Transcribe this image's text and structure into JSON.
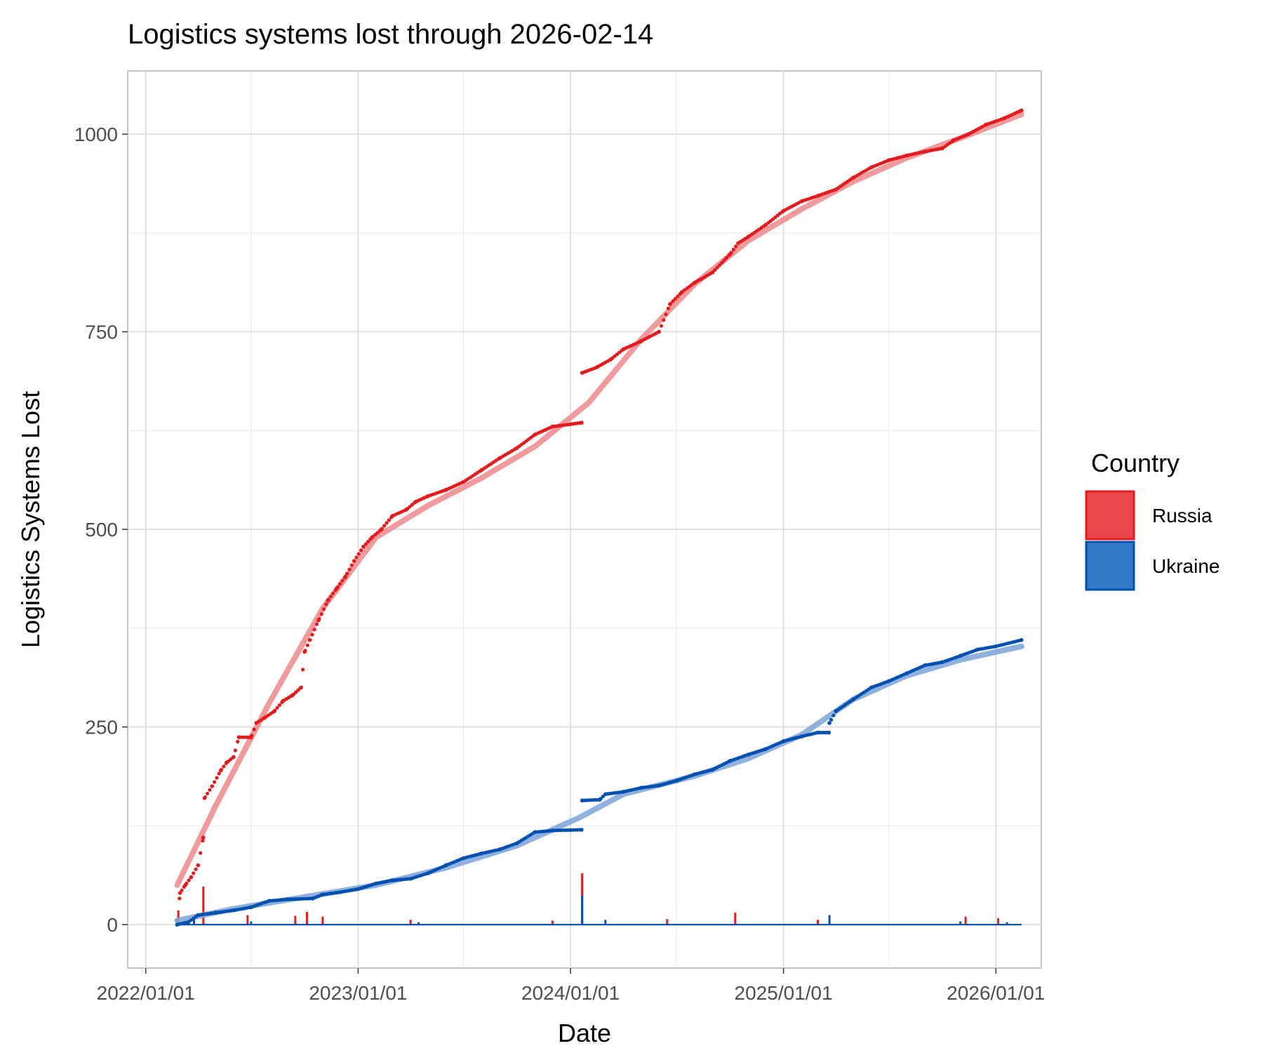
{
  "chart_data": {
    "type": "line",
    "title": "Logistics systems lost through 2026-02-14",
    "xlabel": "Date",
    "ylabel": "Logistics Systems Lost",
    "x_range": [
      "2021-12-01",
      "2026-03-20"
    ],
    "ylim": [
      -55,
      1080
    ],
    "y_ticks": [
      0,
      250,
      500,
      750,
      1000
    ],
    "y_minor": [
      125,
      375,
      625,
      875
    ],
    "x_ticks": [
      {
        "date": "2022-01-01",
        "label": "2022/01/01"
      },
      {
        "date": "2023-01-01",
        "label": "2023/01/01"
      },
      {
        "date": "2024-01-01",
        "label": "2024/01/01"
      },
      {
        "date": "2025-01-01",
        "label": "2025/01/01"
      },
      {
        "date": "2026-01-01",
        "label": "2026/01/01"
      }
    ],
    "x_minor": [
      "2022-07-01",
      "2023-07-01",
      "2024-07-01",
      "2025-07-01"
    ],
    "legend": {
      "title": "Country",
      "position": "right"
    },
    "series": [
      {
        "name": "Russia",
        "color": "#e41a1c",
        "fill": "#e8474b",
        "smooth_color": "#f08f93",
        "cumulative": [
          [
            "2022-02-24",
            5
          ],
          [
            "2022-03-01",
            40
          ],
          [
            "2022-03-10",
            50
          ],
          [
            "2022-03-20",
            60
          ],
          [
            "2022-04-01",
            75
          ],
          [
            "2022-04-10",
            110
          ],
          [
            "2022-04-12",
            160
          ],
          [
            "2022-04-25",
            175
          ],
          [
            "2022-05-10",
            195
          ],
          [
            "2022-05-20",
            205
          ],
          [
            "2022-06-01",
            212
          ],
          [
            "2022-06-10",
            237
          ],
          [
            "2022-07-01",
            237
          ],
          [
            "2022-07-10",
            255
          ],
          [
            "2022-07-25",
            262
          ],
          [
            "2022-08-10",
            270
          ],
          [
            "2022-08-25",
            283
          ],
          [
            "2022-09-10",
            290
          ],
          [
            "2022-09-25",
            300
          ],
          [
            "2022-10-01",
            345
          ],
          [
            "2022-10-10",
            360
          ],
          [
            "2022-10-25",
            385
          ],
          [
            "2022-11-10",
            410
          ],
          [
            "2022-11-25",
            425
          ],
          [
            "2022-12-10",
            440
          ],
          [
            "2022-12-25",
            460
          ],
          [
            "2023-01-10",
            478
          ],
          [
            "2023-01-25",
            490
          ],
          [
            "2023-02-10",
            500
          ],
          [
            "2023-03-01",
            517
          ],
          [
            "2023-03-25",
            525
          ],
          [
            "2023-04-10",
            535
          ],
          [
            "2023-05-01",
            542
          ],
          [
            "2023-06-01",
            550
          ],
          [
            "2023-07-01",
            560
          ],
          [
            "2023-08-01",
            575
          ],
          [
            "2023-09-01",
            590
          ],
          [
            "2023-10-01",
            603
          ],
          [
            "2023-11-01",
            620
          ],
          [
            "2023-12-01",
            630
          ],
          [
            "2024-01-01",
            633
          ],
          [
            "2024-01-20",
            635
          ],
          [
            "2024-01-21",
            698
          ],
          [
            "2024-02-15",
            705
          ],
          [
            "2024-03-10",
            715
          ],
          [
            "2024-04-01",
            728
          ],
          [
            "2024-05-01",
            738
          ],
          [
            "2024-06-01",
            750
          ],
          [
            "2024-06-20",
            785
          ],
          [
            "2024-07-10",
            800
          ],
          [
            "2024-08-01",
            812
          ],
          [
            "2024-09-01",
            825
          ],
          [
            "2024-10-01",
            848
          ],
          [
            "2024-10-15",
            862
          ],
          [
            "2024-11-01",
            870
          ],
          [
            "2024-12-01",
            885
          ],
          [
            "2025-01-01",
            903
          ],
          [
            "2025-02-01",
            915
          ],
          [
            "2025-03-01",
            922
          ],
          [
            "2025-04-01",
            930
          ],
          [
            "2025-05-01",
            945
          ],
          [
            "2025-06-01",
            958
          ],
          [
            "2025-07-01",
            967
          ],
          [
            "2025-08-01",
            973
          ],
          [
            "2025-09-01",
            978
          ],
          [
            "2025-10-01",
            982
          ],
          [
            "2025-10-20",
            992
          ],
          [
            "2025-11-15",
            1000
          ],
          [
            "2025-12-15",
            1012
          ],
          [
            "2026-01-15",
            1020
          ],
          [
            "2026-02-14",
            1030
          ]
        ],
        "smooth": [
          [
            "2022-02-24",
            50
          ],
          [
            "2022-05-01",
            150
          ],
          [
            "2022-08-01",
            280
          ],
          [
            "2022-11-01",
            400
          ],
          [
            "2023-02-01",
            490
          ],
          [
            "2023-05-01",
            530
          ],
          [
            "2023-08-01",
            565
          ],
          [
            "2023-11-01",
            605
          ],
          [
            "2024-02-01",
            660
          ],
          [
            "2024-05-01",
            740
          ],
          [
            "2024-08-01",
            810
          ],
          [
            "2024-11-01",
            865
          ],
          [
            "2025-02-01",
            905
          ],
          [
            "2025-05-01",
            940
          ],
          [
            "2025-08-01",
            970
          ],
          [
            "2025-11-01",
            995
          ],
          [
            "2026-02-14",
            1025
          ]
        ],
        "daily_spikes": [
          [
            "2022-02-26",
            18
          ],
          [
            "2022-04-10",
            48
          ],
          [
            "2022-06-25",
            12
          ],
          [
            "2022-09-15",
            11
          ],
          [
            "2022-10-05",
            16
          ],
          [
            "2022-11-01",
            10
          ],
          [
            "2023-04-01",
            6
          ],
          [
            "2023-12-01",
            5
          ],
          [
            "2024-01-21",
            65
          ],
          [
            "2024-06-15",
            7
          ],
          [
            "2024-10-10",
            15
          ],
          [
            "2025-03-01",
            6
          ],
          [
            "2025-11-10",
            10
          ],
          [
            "2026-01-05",
            8
          ]
        ]
      },
      {
        "name": "Ukraine",
        "color": "#0050b0",
        "fill": "#3478c8",
        "smooth_color": "#82a8db",
        "cumulative": [
          [
            "2022-02-24",
            0
          ],
          [
            "2022-03-15",
            3
          ],
          [
            "2022-04-01",
            12
          ],
          [
            "2022-05-01",
            15
          ],
          [
            "2022-06-01",
            18
          ],
          [
            "2022-07-01",
            22
          ],
          [
            "2022-08-01",
            30
          ],
          [
            "2022-09-01",
            32
          ],
          [
            "2022-10-15",
            33
          ],
          [
            "2022-11-01",
            38
          ],
          [
            "2022-12-01",
            41
          ],
          [
            "2023-01-01",
            45
          ],
          [
            "2023-02-01",
            52
          ],
          [
            "2023-03-01",
            56
          ],
          [
            "2023-04-01",
            58
          ],
          [
            "2023-05-01",
            65
          ],
          [
            "2023-06-01",
            75
          ],
          [
            "2023-07-01",
            84
          ],
          [
            "2023-08-01",
            90
          ],
          [
            "2023-09-01",
            95
          ],
          [
            "2023-10-01",
            103
          ],
          [
            "2023-11-01",
            117
          ],
          [
            "2023-12-01",
            119
          ],
          [
            "2024-01-20",
            120
          ],
          [
            "2024-01-21",
            157
          ],
          [
            "2024-02-20",
            158
          ],
          [
            "2024-03-01",
            165
          ],
          [
            "2024-04-01",
            168
          ],
          [
            "2024-05-01",
            173
          ],
          [
            "2024-06-01",
            176
          ],
          [
            "2024-07-01",
            182
          ],
          [
            "2024-08-01",
            190
          ],
          [
            "2024-09-01",
            196
          ],
          [
            "2024-10-01",
            207
          ],
          [
            "2024-11-01",
            215
          ],
          [
            "2024-12-01",
            222
          ],
          [
            "2025-01-01",
            232
          ],
          [
            "2025-02-01",
            238
          ],
          [
            "2025-03-01",
            243
          ],
          [
            "2025-03-20",
            243
          ],
          [
            "2025-03-21",
            255
          ],
          [
            "2025-04-01",
            270
          ],
          [
            "2025-05-01",
            285
          ],
          [
            "2025-06-01",
            300
          ],
          [
            "2025-07-01",
            308
          ],
          [
            "2025-08-01",
            318
          ],
          [
            "2025-09-01",
            328
          ],
          [
            "2025-10-01",
            332
          ],
          [
            "2025-11-01",
            340
          ],
          [
            "2025-12-01",
            348
          ],
          [
            "2026-01-01",
            352
          ],
          [
            "2026-02-14",
            360
          ]
        ],
        "smooth": [
          [
            "2022-02-24",
            5
          ],
          [
            "2022-06-01",
            20
          ],
          [
            "2022-10-01",
            35
          ],
          [
            "2023-02-01",
            50
          ],
          [
            "2023-06-01",
            72
          ],
          [
            "2023-10-01",
            100
          ],
          [
            "2024-01-15",
            135
          ],
          [
            "2024-04-01",
            165
          ],
          [
            "2024-08-01",
            188
          ],
          [
            "2024-11-01",
            210
          ],
          [
            "2025-02-01",
            240
          ],
          [
            "2025-05-01",
            285
          ],
          [
            "2025-08-01",
            315
          ],
          [
            "2025-11-01",
            335
          ],
          [
            "2026-02-14",
            352
          ]
        ],
        "daily_spikes": [
          [
            "2022-03-25",
            8
          ],
          [
            "2022-07-01",
            4
          ],
          [
            "2023-04-15",
            3
          ],
          [
            "2024-01-21",
            37
          ],
          [
            "2024-03-01",
            6
          ],
          [
            "2025-03-21",
            12
          ],
          [
            "2025-11-01",
            4
          ],
          [
            "2026-01-20",
            3
          ]
        ]
      }
    ]
  }
}
